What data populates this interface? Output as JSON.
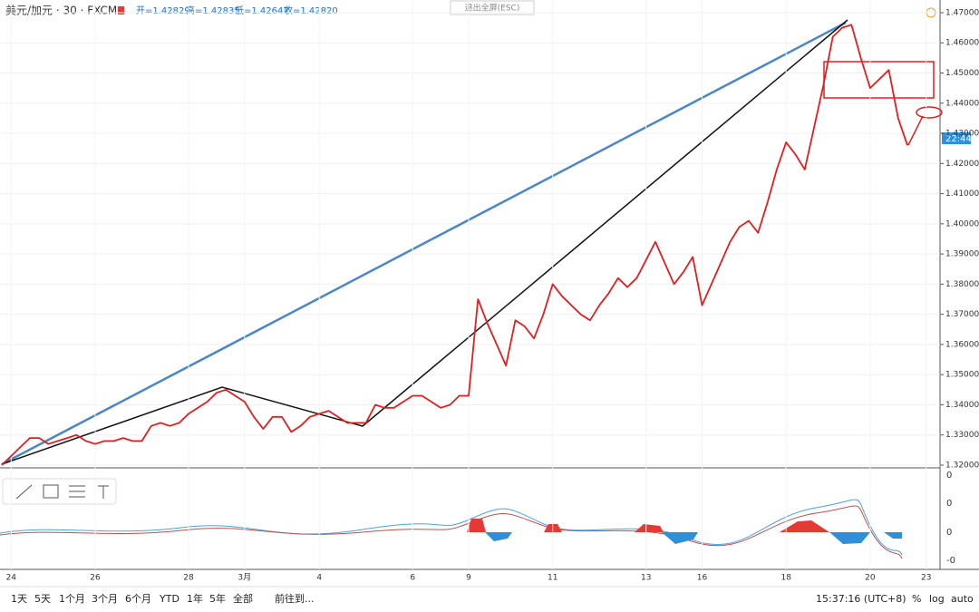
{
  "header": {
    "symbol": "美元/加元 · 30 · FXCM",
    "open": "开=1.42829",
    "high": "高=1.42835",
    "low": "低=1.42647",
    "close": "收=1.42820"
  },
  "exit_fullscreen": "退出全屏(ESC)",
  "price_tag": "22:44",
  "oscillator_ticks": [
    "0",
    "0",
    "0",
    "-0"
  ],
  "bottom_bar": {
    "ranges": [
      "1天",
      "5天",
      "1个月",
      "3个月",
      "6个月",
      "YTD",
      "1年",
      "5年",
      "全部"
    ],
    "goto": "前往到...",
    "clock": "15:37:16 (UTC+8)",
    "options": [
      "%",
      "log",
      "auto"
    ]
  },
  "chart_data": {
    "type": "line",
    "categories": [
      null,
      "24",
      null,
      null,
      null,
      null,
      null,
      null,
      null,
      null,
      "26",
      null,
      null,
      null,
      null,
      null,
      null,
      null,
      null,
      null,
      "28",
      null,
      null,
      null,
      null,
      null,
      "3月",
      null,
      null,
      null,
      null,
      null,
      null,
      null,
      "4",
      null,
      null,
      null,
      null,
      null,
      null,
      null,
      null,
      null,
      "6",
      null,
      null,
      null,
      null,
      null,
      "9",
      null,
      null,
      null,
      null,
      null,
      null,
      null,
      null,
      "11",
      null,
      null,
      null,
      null,
      null,
      null,
      null,
      null,
      null,
      "13",
      null,
      null,
      null,
      null,
      null,
      "16",
      null,
      null,
      null,
      null,
      null,
      null,
      null,
      null,
      "18",
      null,
      null,
      null,
      null,
      null,
      null,
      null,
      null,
      "20",
      null,
      null,
      null,
      null,
      null,
      "23"
    ],
    "series": [
      {
        "name": null,
        "color": "#e02020",
        "values": [
          1.32,
          1.323,
          1.326,
          1.329,
          1.329,
          1.327,
          1.328,
          1.329,
          1.33,
          1.328,
          1.327,
          1.328,
          1.328,
          1.329,
          1.328,
          1.328,
          1.333,
          1.334,
          1.333,
          1.334,
          1.337,
          1.339,
          1.341,
          1.344,
          1.345,
          1.343,
          1.341,
          1.336,
          1.332,
          1.336,
          1.336,
          1.331,
          1.333,
          1.336,
          1.337,
          1.338,
          1.336,
          1.334,
          1.334,
          1.334,
          1.34,
          1.339,
          1.339,
          1.341,
          1.343,
          1.343,
          1.341,
          1.339,
          1.34,
          1.343,
          1.343,
          1.375,
          1.367,
          1.36,
          1.353,
          1.368,
          1.366,
          1.362,
          1.37,
          1.38,
          1.376,
          1.373,
          1.37,
          1.368,
          1.373,
          1.377,
          1.382,
          1.379,
          1.382,
          1.388,
          1.394,
          1.387,
          1.38,
          1.384,
          1.389,
          1.373,
          1.38,
          1.387,
          1.394,
          1.399,
          1.401,
          1.397,
          1.407,
          1.418,
          1.427,
          1.423,
          1.418,
          1.432,
          1.446,
          1.462,
          1.465,
          1.466,
          1.455,
          1.445,
          1.448,
          1.451,
          1.435,
          1.426,
          null,
          null
        ]
      }
    ],
    "ylim": [
      1.3194,
      1.4742
    ],
    "yticks": [
      {
        "value": 1.32,
        "label": "1.32000"
      },
      {
        "value": 1.33,
        "label": "1.33000"
      },
      {
        "value": 1.34,
        "label": "1.34000"
      },
      {
        "value": 1.35,
        "label": "1.35000"
      },
      {
        "value": 1.36,
        "label": "1.36000"
      },
      {
        "value": 1.37,
        "label": "1.37000"
      },
      {
        "value": 1.38,
        "label": "1.38000"
      },
      {
        "value": 1.39,
        "label": "1.39000"
      },
      {
        "value": 1.4,
        "label": "1.40000"
      },
      {
        "value": 1.41,
        "label": "1.41000"
      },
      {
        "value": 1.42,
        "label": "1.42000"
      },
      {
        "value": 1.43,
        "label": "1.43000"
      },
      {
        "value": 1.44,
        "label": "1.44000"
      },
      {
        "value": 1.45,
        "label": "1.45000"
      },
      {
        "value": 1.46,
        "label": "1.46000"
      },
      {
        "value": 1.47,
        "label": "1.47000"
      }
    ],
    "grid": true
  }
}
